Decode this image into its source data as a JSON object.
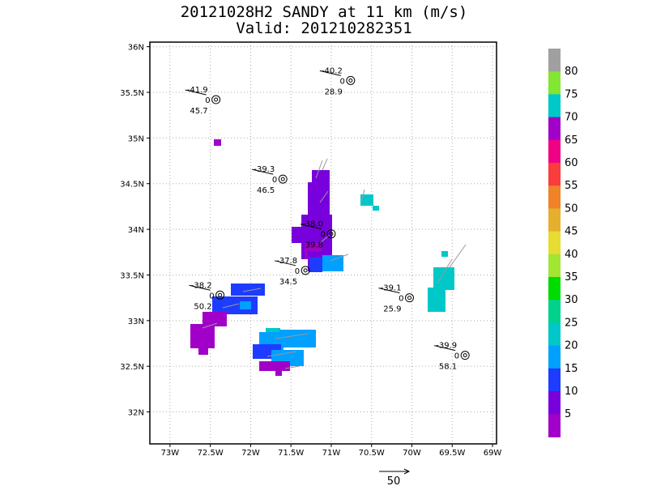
{
  "chart_data": {
    "type": "heatmap",
    "title": "20121028H2 SANDY at 11 km (m/s)",
    "subtitle": "Valid: 201210282351",
    "xlim": [
      -73.25,
      -68.95
    ],
    "ylim": [
      31.65,
      36.05
    ],
    "x_ticks": [
      {
        "value": -73,
        "label": "73W"
      },
      {
        "value": -72.5,
        "label": "72.5W"
      },
      {
        "value": -72,
        "label": "72W"
      },
      {
        "value": -71.5,
        "label": "71.5W"
      },
      {
        "value": -71,
        "label": "71W"
      },
      {
        "value": -70.5,
        "label": "70.5W"
      },
      {
        "value": -70,
        "label": "70W"
      },
      {
        "value": -69.5,
        "label": "69.5W"
      },
      {
        "value": -69,
        "label": "69W"
      }
    ],
    "y_ticks": [
      {
        "value": 32,
        "label": "32N"
      },
      {
        "value": 32.5,
        "label": "32.5N"
      },
      {
        "value": 33,
        "label": "33N"
      },
      {
        "value": 33.5,
        "label": "33.5N"
      },
      {
        "value": 34,
        "label": "34N"
      },
      {
        "value": 34.5,
        "label": "34.5N"
      },
      {
        "value": 35,
        "label": "35N"
      },
      {
        "value": 35.5,
        "label": "35.5N"
      },
      {
        "value": 36,
        "label": "36N"
      }
    ],
    "grid": true,
    "colorbar": {
      "labels": [
        "5",
        "10",
        "15",
        "20",
        "25",
        "30",
        "35",
        "40",
        "45",
        "50",
        "55",
        "60",
        "65",
        "70",
        "75",
        "80"
      ],
      "colors": [
        "#a000c8",
        "#7800dc",
        "#1e3cff",
        "#00a0ff",
        "#00c8c8",
        "#00d28c",
        "#00dc00",
        "#a0e632",
        "#e6dc32",
        "#e6af2d",
        "#f08228",
        "#fa3c3c",
        "#f00082",
        "#a000c8",
        "#00c8c8",
        "#82e632",
        "#a0a0a0"
      ]
    },
    "observations": [
      {
        "lon": -72.43,
        "lat": 35.42,
        "temp": "-41.9",
        "dew": "0",
        "pres": "45.7"
      },
      {
        "lon": -70.76,
        "lat": 35.63,
        "temp": "-40.2",
        "dew": "0",
        "pres": "28.9"
      },
      {
        "lon": -71.6,
        "lat": 34.55,
        "temp": "-39.3",
        "dew": "0",
        "pres": "46.5"
      },
      {
        "lon": -71.0,
        "lat": 33.95,
        "temp": "-38.0",
        "dew": "0",
        "pres": "39.8"
      },
      {
        "lon": -71.32,
        "lat": 33.55,
        "temp": "-37.8",
        "dew": "0",
        "pres": "34.5"
      },
      {
        "lon": -72.38,
        "lat": 33.28,
        "temp": "-38.2",
        "dew": "0",
        "pres": "50.2"
      },
      {
        "lon": -70.03,
        "lat": 33.25,
        "temp": "-39.1",
        "dew": "0",
        "pres": "25.9"
      },
      {
        "lon": -69.34,
        "lat": 32.62,
        "temp": "-39.9",
        "dew": "0",
        "pres": "58.1"
      }
    ],
    "reference_vector": {
      "label": "50"
    }
  }
}
